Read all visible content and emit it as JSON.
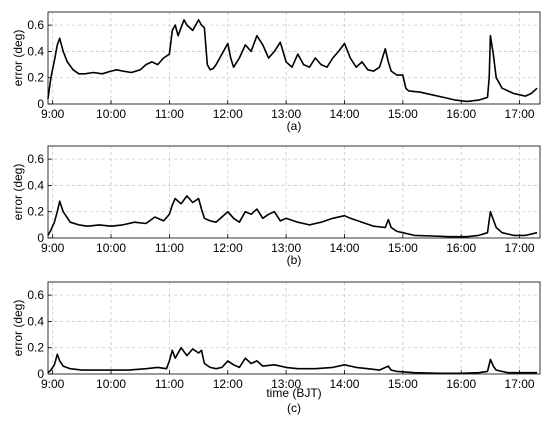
{
  "chart_data": [
    {
      "type": "line",
      "caption": "(a)",
      "ylabel": "error (deg)",
      "xlabel": "",
      "xlim": [
        8.92,
        17.35
      ],
      "ylim": [
        0,
        0.7
      ],
      "yticks": [
        "0",
        "0.2",
        "0.4",
        "0.6"
      ],
      "ytick_values": [
        0,
        0.2,
        0.4,
        0.6
      ],
      "xticks": [
        "9:00",
        "10:00",
        "11:00",
        "12:00",
        "13:00",
        "14:00",
        "15:00",
        "16:00",
        "17:00"
      ],
      "xtick_values": [
        9,
        10,
        11,
        12,
        13,
        14,
        15,
        16,
        17
      ],
      "grid": true,
      "series": [
        {
          "x": [
            8.92,
            8.97,
            9.03,
            9.08,
            9.12,
            9.18,
            9.25,
            9.35,
            9.45,
            9.55,
            9.7,
            9.85,
            10.0,
            10.1,
            10.2,
            10.35,
            10.5,
            10.6,
            10.7,
            10.8,
            10.9,
            11.0,
            11.05,
            11.1,
            11.15,
            11.25,
            11.3,
            11.4,
            11.5,
            11.55,
            11.6,
            11.65,
            11.7,
            11.75,
            11.8,
            11.9,
            12.0,
            12.05,
            12.1,
            12.2,
            12.3,
            12.4,
            12.5,
            12.6,
            12.7,
            12.8,
            12.9,
            13.0,
            13.1,
            13.2,
            13.3,
            13.4,
            13.5,
            13.6,
            13.7,
            13.8,
            13.9,
            14.0,
            14.1,
            14.2,
            14.3,
            14.4,
            14.5,
            14.6,
            14.7,
            14.75,
            14.8,
            14.9,
            15.0,
            15.05,
            15.1,
            15.3,
            15.5,
            15.7,
            15.9,
            16.1,
            16.3,
            16.45,
            16.48,
            16.5,
            16.55,
            16.6,
            16.7,
            16.8,
            16.9,
            17.0,
            17.1,
            17.2,
            17.3
          ],
          "y": [
            0.04,
            0.2,
            0.33,
            0.45,
            0.5,
            0.4,
            0.32,
            0.26,
            0.23,
            0.23,
            0.24,
            0.23,
            0.25,
            0.26,
            0.25,
            0.24,
            0.26,
            0.3,
            0.32,
            0.3,
            0.35,
            0.38,
            0.56,
            0.6,
            0.52,
            0.64,
            0.6,
            0.56,
            0.64,
            0.6,
            0.58,
            0.3,
            0.26,
            0.27,
            0.3,
            0.38,
            0.46,
            0.35,
            0.28,
            0.35,
            0.45,
            0.4,
            0.52,
            0.45,
            0.35,
            0.4,
            0.47,
            0.32,
            0.28,
            0.38,
            0.3,
            0.28,
            0.35,
            0.3,
            0.28,
            0.35,
            0.4,
            0.46,
            0.35,
            0.28,
            0.32,
            0.26,
            0.25,
            0.28,
            0.42,
            0.32,
            0.25,
            0.22,
            0.22,
            0.12,
            0.1,
            0.09,
            0.07,
            0.05,
            0.03,
            0.02,
            0.03,
            0.05,
            0.2,
            0.52,
            0.38,
            0.2,
            0.12,
            0.1,
            0.08,
            0.07,
            0.06,
            0.08,
            0.12
          ]
        }
      ]
    },
    {
      "type": "line",
      "caption": "(b)",
      "ylabel": "error (deg)",
      "xlabel": "",
      "xlim": [
        8.92,
        17.35
      ],
      "ylim": [
        0,
        0.7
      ],
      "yticks": [
        "0",
        "0.2",
        "0.4",
        "0.6"
      ],
      "ytick_values": [
        0,
        0.2,
        0.4,
        0.6
      ],
      "xticks": [
        "9:00",
        "10:00",
        "11:00",
        "12:00",
        "13:00",
        "14:00",
        "15:00",
        "16:00",
        "17:00"
      ],
      "xtick_values": [
        9,
        10,
        11,
        12,
        13,
        14,
        15,
        16,
        17
      ],
      "grid": true,
      "series": [
        {
          "x": [
            8.92,
            8.97,
            9.03,
            9.08,
            9.12,
            9.18,
            9.3,
            9.45,
            9.6,
            9.8,
            10.0,
            10.2,
            10.4,
            10.6,
            10.75,
            10.9,
            11.0,
            11.05,
            11.1,
            11.2,
            11.3,
            11.4,
            11.5,
            11.55,
            11.6,
            11.7,
            11.8,
            11.9,
            12.0,
            12.1,
            12.2,
            12.3,
            12.4,
            12.5,
            12.6,
            12.7,
            12.8,
            12.9,
            13.0,
            13.2,
            13.4,
            13.6,
            13.8,
            14.0,
            14.1,
            14.3,
            14.5,
            14.7,
            14.75,
            14.8,
            14.9,
            15.0,
            15.2,
            15.5,
            15.8,
            16.1,
            16.3,
            16.45,
            16.5,
            16.55,
            16.6,
            16.7,
            16.9,
            17.1,
            17.3
          ],
          "y": [
            0.02,
            0.06,
            0.12,
            0.2,
            0.28,
            0.2,
            0.12,
            0.1,
            0.09,
            0.1,
            0.09,
            0.1,
            0.12,
            0.11,
            0.16,
            0.13,
            0.18,
            0.25,
            0.3,
            0.26,
            0.32,
            0.27,
            0.3,
            0.22,
            0.15,
            0.13,
            0.12,
            0.16,
            0.2,
            0.15,
            0.12,
            0.2,
            0.18,
            0.22,
            0.15,
            0.18,
            0.2,
            0.13,
            0.15,
            0.12,
            0.1,
            0.12,
            0.15,
            0.17,
            0.15,
            0.12,
            0.09,
            0.08,
            0.14,
            0.08,
            0.05,
            0.04,
            0.02,
            0.015,
            0.01,
            0.01,
            0.02,
            0.04,
            0.2,
            0.14,
            0.08,
            0.04,
            0.02,
            0.02,
            0.04
          ]
        }
      ]
    },
    {
      "type": "line",
      "caption": "(c)",
      "ylabel": "error (deg)",
      "xlabel": "time  (BJT)",
      "xlim": [
        8.92,
        17.35
      ],
      "ylim": [
        0,
        0.7
      ],
      "yticks": [
        "0",
        "0.2",
        "0.4",
        "0.6"
      ],
      "ytick_values": [
        0,
        0.2,
        0.4,
        0.6
      ],
      "xticks": [
        "9:00",
        "10:00",
        "11:00",
        "12:00",
        "13:00",
        "14:00",
        "15:00",
        "16:00",
        "17:00"
      ],
      "xtick_values": [
        9,
        10,
        11,
        12,
        13,
        14,
        15,
        16,
        17
      ],
      "grid": true,
      "series": [
        {
          "x": [
            8.92,
            8.97,
            9.03,
            9.08,
            9.12,
            9.18,
            9.3,
            9.5,
            9.8,
            10.0,
            10.3,
            10.6,
            10.8,
            10.95,
            11.0,
            11.05,
            11.1,
            11.2,
            11.3,
            11.4,
            11.5,
            11.55,
            11.6,
            11.7,
            11.8,
            11.9,
            12.0,
            12.1,
            12.2,
            12.3,
            12.4,
            12.5,
            12.6,
            12.8,
            13.0,
            13.2,
            13.5,
            13.8,
            14.0,
            14.2,
            14.4,
            14.6,
            14.75,
            14.8,
            14.9,
            15.2,
            15.6,
            16.0,
            16.3,
            16.45,
            16.5,
            16.55,
            16.6,
            16.8,
            17.0,
            17.3
          ],
          "y": [
            0.01,
            0.03,
            0.07,
            0.15,
            0.1,
            0.06,
            0.04,
            0.03,
            0.03,
            0.03,
            0.03,
            0.04,
            0.05,
            0.04,
            0.1,
            0.18,
            0.12,
            0.2,
            0.14,
            0.19,
            0.16,
            0.18,
            0.08,
            0.05,
            0.04,
            0.05,
            0.1,
            0.07,
            0.05,
            0.12,
            0.08,
            0.1,
            0.06,
            0.07,
            0.05,
            0.04,
            0.04,
            0.05,
            0.07,
            0.05,
            0.04,
            0.03,
            0.06,
            0.03,
            0.02,
            0.01,
            0.005,
            0.005,
            0.01,
            0.02,
            0.11,
            0.06,
            0.03,
            0.01,
            0.01,
            0.01
          ]
        }
      ]
    }
  ]
}
